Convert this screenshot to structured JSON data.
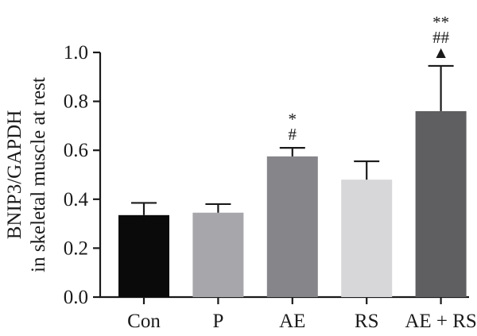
{
  "chart_data": {
    "type": "bar",
    "categories": [
      "Con",
      "P",
      "AE",
      "RS",
      "AE + RS"
    ],
    "values": [
      0.335,
      0.345,
      0.575,
      0.48,
      0.76
    ],
    "errors": [
      0.05,
      0.035,
      0.035,
      0.075,
      0.185
    ],
    "bar_colors": [
      "#0a0a0a",
      "#a7a6ab",
      "#86868a",
      "#d7d7d9",
      "#5f5f61"
    ],
    "ylabel_lines": [
      "BNIP3/GAPDH",
      "in skeletal muscle at rest"
    ],
    "ylim": [
      0.0,
      1.0
    ],
    "yticks": [
      "0.0",
      "0.2",
      "0.4",
      "0.6",
      "0.8",
      "1.0"
    ],
    "grid": false,
    "significance": [
      {
        "category": "AE",
        "marks": [
          "#",
          "*"
        ]
      },
      {
        "category": "AE + RS",
        "marks": [
          "▲",
          "##",
          "**"
        ]
      }
    ]
  }
}
